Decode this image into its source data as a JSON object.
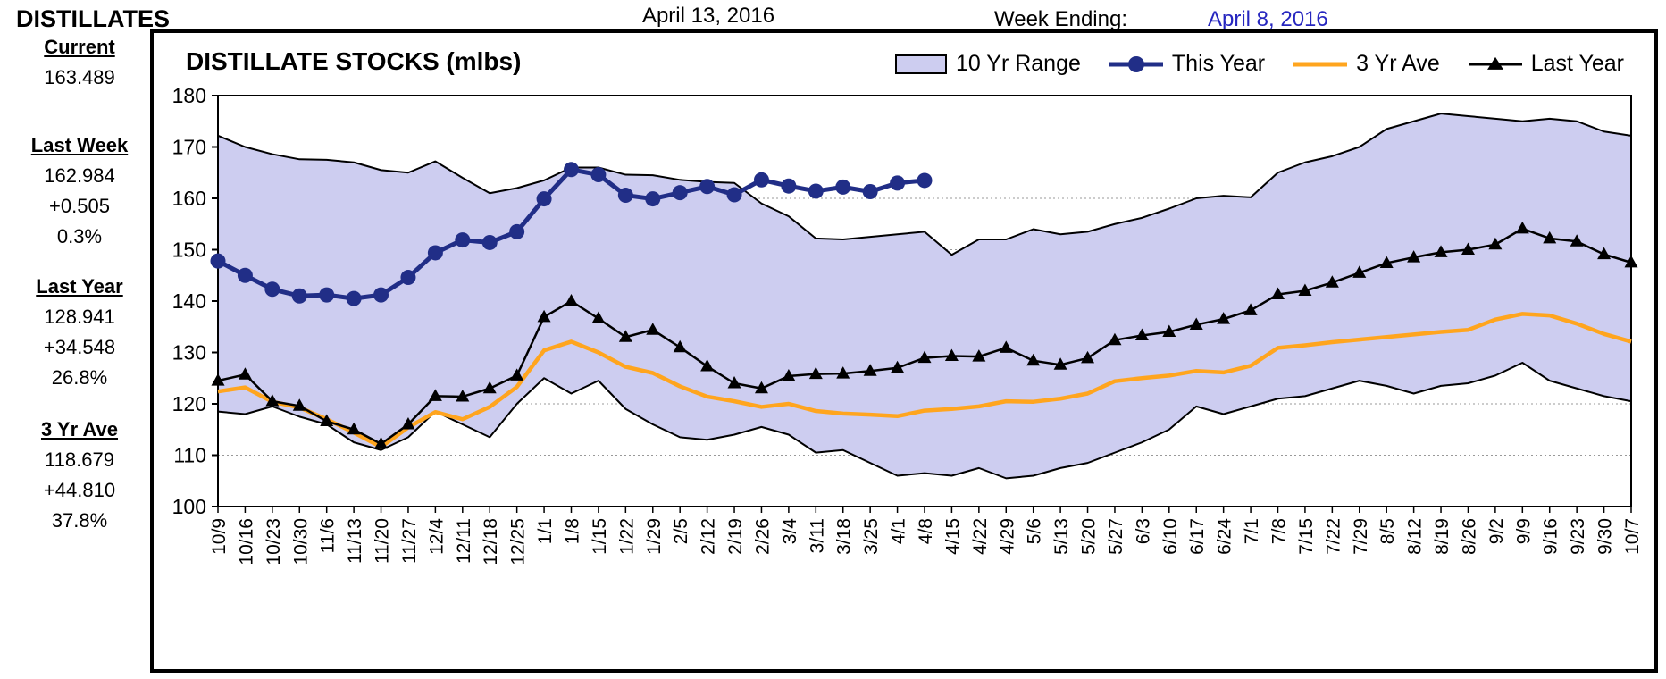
{
  "header": {
    "title": "DISTILLATES",
    "report_date": "April 13, 2016",
    "week_ending_label": "Week Ending:",
    "week_ending_date": "April 8, 2016"
  },
  "sidebar": {
    "sections": [
      {
        "label": "Current",
        "values": [
          "163.489"
        ]
      },
      {
        "label": "Last Week",
        "values": [
          "162.984",
          "+0.505",
          "0.3%"
        ]
      },
      {
        "label": "Last Year",
        "values": [
          "128.941",
          "+34.548",
          "26.8%"
        ]
      },
      {
        "label": "3 Yr Ave",
        "values": [
          "118.679",
          "+44.810",
          "37.8%"
        ]
      }
    ]
  },
  "chart": {
    "title": "DISTILLATE STOCKS (mlbs)",
    "legend": [
      {
        "label": "10 Yr Range",
        "type": "band"
      },
      {
        "label": "This Year",
        "type": "line-circle"
      },
      {
        "label": "3 Yr Ave",
        "type": "line"
      },
      {
        "label": "Last Year",
        "type": "line-triangle"
      }
    ]
  },
  "colors": {
    "this_year": "#212E87",
    "three_yr_ave": "#FFA51E",
    "last_year": "#000000",
    "range_fill": "#CDCDF0",
    "range_edge": "#000000",
    "grid": "#999999",
    "week_ending_date": "#2626BF"
  },
  "chart_data": {
    "type": "line",
    "title": "DISTILLATE STOCKS (mlbs)",
    "ylabel": "",
    "xlabel": "",
    "ylim": [
      100,
      180
    ],
    "ytick_interval": 10,
    "grid": "dotted-horizontal",
    "legend_position": "top-right",
    "categories": [
      "10/9",
      "10/16",
      "10/23",
      "10/30",
      "11/6",
      "11/13",
      "11/20",
      "11/27",
      "12/4",
      "12/11",
      "12/18",
      "12/25",
      "1/1",
      "1/8",
      "1/15",
      "1/22",
      "1/29",
      "2/5",
      "2/12",
      "2/19",
      "2/26",
      "3/4",
      "3/11",
      "3/18",
      "3/25",
      "4/1",
      "4/8",
      "4/15",
      "4/22",
      "4/29",
      "5/6",
      "5/13",
      "5/20",
      "5/27",
      "6/3",
      "6/10",
      "6/17",
      "6/24",
      "7/1",
      "7/8",
      "7/15",
      "7/22",
      "7/29",
      "8/5",
      "8/12",
      "8/19",
      "8/26",
      "9/2",
      "9/9",
      "9/16",
      "9/23",
      "9/30",
      "10/7"
    ],
    "series": [
      {
        "name": "10 Yr Range",
        "type": "band",
        "high": [
          172.2,
          170.0,
          168.6,
          167.6,
          167.5,
          167.0,
          165.5,
          165.0,
          167.2,
          164.0,
          161.0,
          162.0,
          163.5,
          166.0,
          166.0,
          164.6,
          164.5,
          163.6,
          163.2,
          163.0,
          159.0,
          156.5,
          152.2,
          152.0,
          152.5,
          153.0,
          153.5,
          149.0,
          152.0,
          152.0,
          154.0,
          153.0,
          153.5,
          155.0,
          156.2,
          158.0,
          160.0,
          160.5,
          160.2,
          165.0,
          167.0,
          168.2,
          170.0,
          173.5,
          175.0,
          176.5,
          176.0,
          175.5,
          175.0,
          175.5,
          175.0,
          173.0,
          172.2
        ],
        "low": [
          118.5,
          118.0,
          119.5,
          117.5,
          116.0,
          112.5,
          111.0,
          113.5,
          118.5,
          116.0,
          113.5,
          120.0,
          125.0,
          122.0,
          124.5,
          119.0,
          116.0,
          113.5,
          113.0,
          114.0,
          115.5,
          114.0,
          110.5,
          111.0,
          108.5,
          106.0,
          106.5,
          106.0,
          107.5,
          105.5,
          106.0,
          107.5,
          108.5,
          110.5,
          112.5,
          115.0,
          119.5,
          118.0,
          119.5,
          121.0,
          121.5,
          123.0,
          124.5,
          123.5,
          122.0,
          123.5,
          124.0,
          125.5,
          128.0,
          124.5,
          123.0,
          121.5,
          120.5
        ]
      },
      {
        "name": "This Year",
        "type": "line-circle",
        "values": [
          147.8,
          145.0,
          142.3,
          141.0,
          141.2,
          140.5,
          141.2,
          144.6,
          149.4,
          151.9,
          151.4,
          153.5,
          159.9,
          165.6,
          164.6,
          160.6,
          159.9,
          161.1,
          162.3,
          160.7,
          163.6,
          162.4,
          161.4,
          162.2,
          161.3,
          162.984,
          163.489
        ]
      },
      {
        "name": "3 Yr Ave",
        "type": "line",
        "values": [
          122.4,
          123.2,
          120.4,
          119.3,
          117.0,
          114.4,
          111.6,
          115.4,
          118.4,
          117.0,
          119.4,
          123.3,
          130.4,
          132.1,
          130.0,
          127.2,
          126.0,
          123.4,
          121.4,
          120.5,
          119.4,
          120.0,
          118.6,
          118.1,
          117.9,
          117.6,
          118.679,
          119.0,
          119.5,
          120.5,
          120.4,
          121.0,
          122.0,
          124.4,
          125.0,
          125.5,
          126.4,
          126.1,
          127.4,
          130.9,
          131.4,
          132.0,
          132.5,
          133.0,
          133.5,
          134.0,
          134.4,
          136.4,
          137.5,
          137.2,
          135.6,
          133.6,
          132.1
        ]
      },
      {
        "name": "Last Year",
        "type": "line-triangle",
        "values": [
          124.5,
          125.7,
          120.5,
          119.6,
          116.6,
          115.0,
          112.2,
          116.0,
          121.5,
          121.4,
          123.0,
          125.5,
          136.9,
          140.0,
          136.6,
          133.0,
          134.4,
          131.0,
          127.3,
          124.0,
          123.0,
          125.4,
          125.8,
          125.9,
          126.4,
          127.0,
          128.941,
          129.3,
          129.2,
          130.9,
          128.4,
          127.6,
          128.9,
          132.4,
          133.3,
          134.0,
          135.4,
          136.5,
          138.2,
          141.3,
          142.0,
          143.6,
          145.5,
          147.4,
          148.5,
          149.5,
          150.0,
          151.0,
          154.1,
          152.2,
          151.6,
          149.1,
          147.5
        ]
      }
    ]
  }
}
